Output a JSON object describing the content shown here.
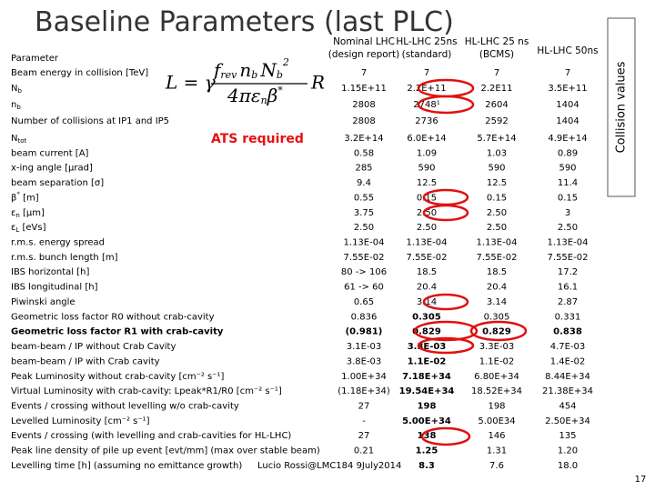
{
  "header": {
    "title": "Baseline Parameters (last PLC)"
  },
  "annotations": {
    "ats": "ATS required",
    "side": "Collision values",
    "credit": "Lucio Rossi@LMC184 9July2014",
    "page": "17"
  },
  "formula": {
    "lhs": "L = γ",
    "num": [
      "f",
      "rev",
      "n",
      "b",
      "N",
      "b",
      "2"
    ],
    "den": [
      "4π",
      "ε",
      "n",
      "β",
      "*"
    ],
    "rhs": "R"
  },
  "table": {
    "columns": [
      "Parameter",
      "Nominal LHC (design report)",
      "HL-LHC 25ns (standard)",
      "HL-LHC 25 ns (BCMS)",
      "HL-LHC 50ns"
    ],
    "rows": [
      {
        "label": "Beam energy in collision [TeV]",
        "values": [
          "7",
          "7",
          "7",
          "7"
        ]
      },
      {
        "label": "N",
        "sub": "b",
        "values": [
          "1.15E+11",
          "2.2E+11",
          "2.2E11",
          "3.5E+11"
        ]
      },
      {
        "label": "n",
        "sub": "b",
        "values": [
          "2808",
          "2748¹",
          "2604",
          "1404"
        ]
      },
      {
        "label": "Number of collisions at IP1 and IP5",
        "values": [
          "2808",
          "2736",
          "2592",
          "1404"
        ]
      },
      {
        "label": "N",
        "sub": "tot",
        "values": [
          "3.2E+14",
          "6.0E+14",
          "5.7E+14",
          "4.9E+14"
        ]
      },
      {
        "label": "beam current [A]",
        "values": [
          "0.58",
          "1.09",
          "1.03",
          "0.89"
        ]
      },
      {
        "label": "x-ing angle [μrad]",
        "values": [
          "285",
          "590",
          "590",
          "590"
        ]
      },
      {
        "label": "beam separation [σ]",
        "values": [
          "9.4",
          "12.5",
          "12.5",
          "11.4"
        ]
      },
      {
        "label": "β",
        "sup": "*",
        "tail": " [m]",
        "values": [
          "0.55",
          "0.15",
          "0.15",
          "0.15"
        ]
      },
      {
        "label": "ε",
        "sub": "n",
        "tail": " [μm]",
        "values": [
          "3.75",
          "2.50",
          "2.50",
          "3"
        ]
      },
      {
        "label": "ε",
        "sub": "L",
        "tail": " [eVs]",
        "values": [
          "2.50",
          "2.50",
          "2.50",
          "2.50"
        ]
      },
      {
        "label": "r.m.s. energy spread",
        "values": [
          "1.13E-04",
          "1.13E-04",
          "1.13E-04",
          "1.13E-04"
        ]
      },
      {
        "label": "r.m.s. bunch length [m]",
        "values": [
          "7.55E-02",
          "7.55E-02",
          "7.55E-02",
          "7.55E-02"
        ]
      },
      {
        "label": "IBS horizontal [h]",
        "values": [
          "80 -> 106",
          "18.5",
          "18.5",
          "17.2"
        ]
      },
      {
        "label": "IBS longitudinal [h]",
        "values": [
          "61 -> 60",
          "20.4",
          "20.4",
          "16.1"
        ]
      },
      {
        "label": "Piwinski angle",
        "values": [
          "0.65",
          "3.14",
          "3.14",
          "2.87"
        ]
      },
      {
        "label": "Geometric loss factor R0  without crab-cavity",
        "values": [
          "0.836",
          "0.305",
          "0.305",
          "0.331"
        ]
      },
      {
        "label": "Geometric loss factor R1 with crab-cavity",
        "bold": true,
        "values": [
          "(0.981)",
          "0.829",
          "0.829",
          "0.838"
        ]
      },
      {
        "label": "beam-beam / IP without Crab Cavity",
        "values": [
          "3.1E-03",
          "3.3E-03",
          "3.3E-03",
          "4.7E-03"
        ]
      },
      {
        "label": "beam-beam / IP with Crab cavity",
        "values": [
          "3.8E-03",
          "1.1E-02",
          "1.1E-02",
          "1.4E-02"
        ]
      },
      {
        "label": "Peak Luminosity without  crab-cavity [cm⁻² s⁻¹]",
        "values": [
          "1.00E+34",
          "7.18E+34",
          "6.80E+34",
          "8.44E+34"
        ]
      },
      {
        "label": "Virtual Luminosity with crab-cavity: Lpeak*R1/R0   [cm⁻² s⁻¹]",
        "values": [
          "(1.18E+34)",
          "19.54E+34",
          "18.52E+34",
          "21.38E+34"
        ]
      },
      {
        "label": "Events / crossing without levelling w/o crab-cavity",
        "values": [
          "27",
          "198",
          "198",
          "454"
        ]
      },
      {
        "label": "Levelled Luminosity [cm⁻² s⁻¹]",
        "values": [
          "-",
          "5.00E+34",
          "5.00E34",
          "2.50E+34"
        ]
      },
      {
        "label": "Events / crossing (with levelling and crab-cavities for HL-LHC)",
        "values": [
          "27",
          "138",
          "146",
          "135"
        ]
      },
      {
        "label": "Peak line density of pile up event [evt/mm] (max over stable beam)",
        "values": [
          "0.21",
          "1.25",
          "1.31",
          "1.20"
        ]
      },
      {
        "label": "Levelling time [h] (assuming no emittance growth)",
        "values": [
          null,
          "8.3",
          "7.6",
          "18.0"
        ]
      }
    ]
  }
}
